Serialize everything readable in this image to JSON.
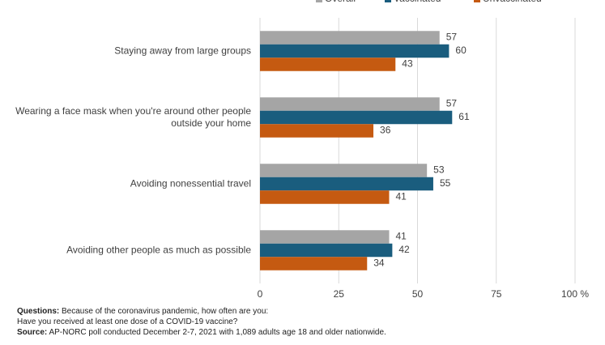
{
  "chart_data": {
    "type": "hbar",
    "categories": [
      "Staying away from large groups",
      "Wearing a face mask when you're around other people outside your home",
      "Avoiding nonessential travel",
      "Avoiding other people as much as possible"
    ],
    "series": [
      {
        "name": "Overall",
        "color": "#a5a5a5",
        "values": [
          57,
          57,
          53,
          41
        ]
      },
      {
        "name": "Vaccinated",
        "color": "#1a5d7e",
        "values": [
          60,
          61,
          55,
          42
        ]
      },
      {
        "name": "Unvaccinated",
        "color": "#c55a11",
        "values": [
          43,
          36,
          41,
          34
        ]
      }
    ],
    "xlim": [
      0,
      100
    ],
    "xticks": [
      0,
      25,
      50,
      75,
      {
        "value": 100,
        "label": "100 %"
      }
    ],
    "grid": true,
    "legend": "top",
    "notes": [
      {
        "label": "Questions:",
        "text": "Because of the coronavirus pandemic, how often are you:"
      },
      {
        "text": "Have you received at least one dose of a COVID-19 vaccine?"
      },
      {
        "label": "Source:",
        "text": "AP-NORC poll conducted December 2-7, 2021 with 1,089 adults age 18 and older nationwide."
      }
    ]
  }
}
